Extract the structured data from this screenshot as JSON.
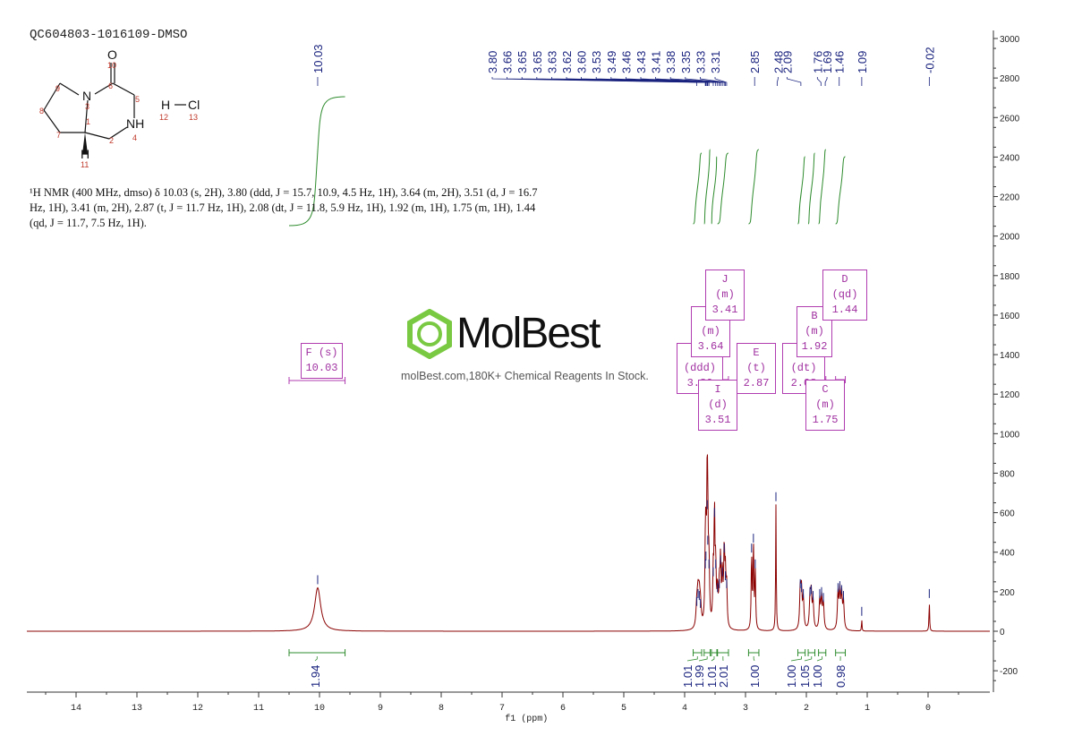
{
  "sample_id": "QC604803-1016109-DMSO",
  "nmr_description": "¹H NMR (400 MHz, dmso) δ 10.03 (s, 2H), 3.80 (ddd, J = 15.7, 10.9, 4.5 Hz, 1H), 3.64 (m, 2H), 3.51 (d, J = 16.7 Hz, 1H), 3.41 (m, 2H), 2.87 (t, J = 11.7 Hz, 1H), 2.08 (dt, J = 11.8, 5.9 Hz, 1H), 1.92 (m, 1H), 1.75 (m, 1H), 1.44 (qd, J = 11.7, 7.5 Hz, 1H).",
  "molecule": {
    "atoms": [
      "O",
      "N",
      "NH",
      "H",
      "H",
      "Cl"
    ],
    "atom_numbers": [
      "1",
      "2",
      "3",
      "4",
      "5",
      "6",
      "7",
      "8",
      "9",
      "10",
      "11",
      "12",
      "13"
    ]
  },
  "brand": {
    "name": "MolBest",
    "tagline": "molBest.com,180K+ Chemical Reagents In Stock."
  },
  "colors": {
    "spectrum": "#8b0000",
    "peak_labels": "#1a237e",
    "integral": "#2e8b2e",
    "multiplet": "#b03cb0",
    "logo": "#7ac943"
  },
  "chart_data": {
    "type": "line",
    "xlabel": "f1 (ppm)",
    "xlim": [
      15,
      -1
    ],
    "ylim": [
      -300,
      3000
    ],
    "x_ticks": [
      14,
      13,
      12,
      11,
      10,
      9,
      8,
      7,
      6,
      5,
      4,
      3,
      2,
      1,
      0
    ],
    "y_ticks": [
      -200,
      0,
      200,
      400,
      600,
      800,
      1000,
      1200,
      1400,
      1600,
      1800,
      2000,
      2200,
      2400,
      2600,
      2800,
      3000
    ],
    "peak_labels": [
      "10.03",
      "3.80",
      "3.66",
      "3.65",
      "3.65",
      "3.63",
      "3.62",
      "3.60",
      "3.53",
      "3.49",
      "3.46",
      "3.43",
      "3.41",
      "3.38",
      "3.35",
      "3.33",
      "3.31",
      "2.85",
      "2.48",
      "2.09",
      "1.76",
      "1.69",
      "1.46",
      "1.09",
      "-0.02"
    ],
    "spectrum_peaks": [
      {
        "ppm": 10.03,
        "height": 220,
        "width": 0.06
      },
      {
        "ppm": 3.8,
        "height": 110,
        "width": 0.015
      },
      {
        "ppm": 3.78,
        "height": 150,
        "width": 0.015
      },
      {
        "ppm": 3.76,
        "height": 140,
        "width": 0.015
      },
      {
        "ppm": 3.74,
        "height": 100,
        "width": 0.015
      },
      {
        "ppm": 3.66,
        "height": 300,
        "width": 0.01
      },
      {
        "ppm": 3.65,
        "height": 340,
        "width": 0.01
      },
      {
        "ppm": 3.63,
        "height": 600,
        "width": 0.008
      },
      {
        "ppm": 3.62,
        "height": 420,
        "width": 0.01
      },
      {
        "ppm": 3.6,
        "height": 300,
        "width": 0.01
      },
      {
        "ppm": 3.53,
        "height": 260,
        "width": 0.01
      },
      {
        "ppm": 3.51,
        "height": 560,
        "width": 0.008
      },
      {
        "ppm": 3.49,
        "height": 300,
        "width": 0.01
      },
      {
        "ppm": 3.46,
        "height": 180,
        "width": 0.01
      },
      {
        "ppm": 3.43,
        "height": 200,
        "width": 0.01
      },
      {
        "ppm": 3.41,
        "height": 320,
        "width": 0.01
      },
      {
        "ppm": 3.38,
        "height": 260,
        "width": 0.01
      },
      {
        "ppm": 3.35,
        "height": 380,
        "width": 0.01
      },
      {
        "ppm": 3.33,
        "height": 240,
        "width": 0.01
      },
      {
        "ppm": 3.31,
        "height": 200,
        "width": 0.01
      },
      {
        "ppm": 2.9,
        "height": 380,
        "width": 0.008
      },
      {
        "ppm": 2.87,
        "height": 430,
        "width": 0.008
      },
      {
        "ppm": 2.84,
        "height": 300,
        "width": 0.008
      },
      {
        "ppm": 2.5,
        "height": 640,
        "width": 0.006
      },
      {
        "ppm": 2.1,
        "height": 200,
        "width": 0.012
      },
      {
        "ppm": 2.08,
        "height": 180,
        "width": 0.012
      },
      {
        "ppm": 2.05,
        "height": 150,
        "width": 0.012
      },
      {
        "ppm": 1.94,
        "height": 160,
        "width": 0.012
      },
      {
        "ppm": 1.92,
        "height": 170,
        "width": 0.012
      },
      {
        "ppm": 1.89,
        "height": 140,
        "width": 0.012
      },
      {
        "ppm": 1.78,
        "height": 150,
        "width": 0.012
      },
      {
        "ppm": 1.75,
        "height": 160,
        "width": 0.012
      },
      {
        "ppm": 1.72,
        "height": 130,
        "width": 0.012
      },
      {
        "ppm": 1.48,
        "height": 180,
        "width": 0.012
      },
      {
        "ppm": 1.45,
        "height": 190,
        "width": 0.012
      },
      {
        "ppm": 1.42,
        "height": 170,
        "width": 0.012
      },
      {
        "ppm": 1.39,
        "height": 140,
        "width": 0.012
      },
      {
        "ppm": 1.09,
        "height": 60,
        "width": 0.005
      },
      {
        "ppm": -0.02,
        "height": 150,
        "width": 0.006
      }
    ],
    "multiplets": [
      {
        "letter": "F",
        "type": "s",
        "shift": "10.03",
        "range": [
          10.5,
          9.58
        ]
      },
      {
        "letter": "G",
        "type": "ddd",
        "shift": "3.80",
        "range": [
          3.86,
          3.72
        ]
      },
      {
        "letter": "H",
        "type": "m",
        "shift": "3.64",
        "range": [
          3.68,
          3.58
        ]
      },
      {
        "letter": "I",
        "type": "d",
        "shift": "3.51",
        "range": [
          3.56,
          3.47
        ]
      },
      {
        "letter": "J",
        "type": "m",
        "shift": "3.41",
        "range": [
          3.46,
          3.28
        ]
      },
      {
        "letter": "E",
        "type": "t",
        "shift": "2.87",
        "range": [
          2.95,
          2.78
        ]
      },
      {
        "letter": "A",
        "type": "dt",
        "shift": "2.08",
        "range": [
          2.14,
          2.02
        ]
      },
      {
        "letter": "B",
        "type": "m",
        "shift": "1.92",
        "range": [
          1.97,
          1.86
        ]
      },
      {
        "letter": "C",
        "type": "m",
        "shift": "1.75",
        "range": [
          1.8,
          1.68
        ]
      },
      {
        "letter": "D",
        "type": "qd",
        "shift": "1.44",
        "range": [
          1.52,
          1.36
        ]
      }
    ],
    "integrals": [
      {
        "value": "1.94",
        "range": [
          10.5,
          9.58
        ]
      },
      {
        "value": "1.01",
        "range": [
          3.86,
          3.72
        ]
      },
      {
        "value": "1.99",
        "range": [
          3.68,
          3.58
        ]
      },
      {
        "value": "1.01",
        "range": [
          3.56,
          3.47
        ]
      },
      {
        "value": "2.01",
        "range": [
          3.46,
          3.28
        ]
      },
      {
        "value": "1.00",
        "range": [
          2.95,
          2.78
        ]
      },
      {
        "value": "1.00",
        "range": [
          2.14,
          2.02
        ]
      },
      {
        "value": "1.05",
        "range": [
          1.97,
          1.86
        ]
      },
      {
        "value": "1.00",
        "range": [
          1.8,
          1.68
        ]
      },
      {
        "value": "0.98",
        "range": [
          1.52,
          1.36
        ]
      }
    ]
  }
}
